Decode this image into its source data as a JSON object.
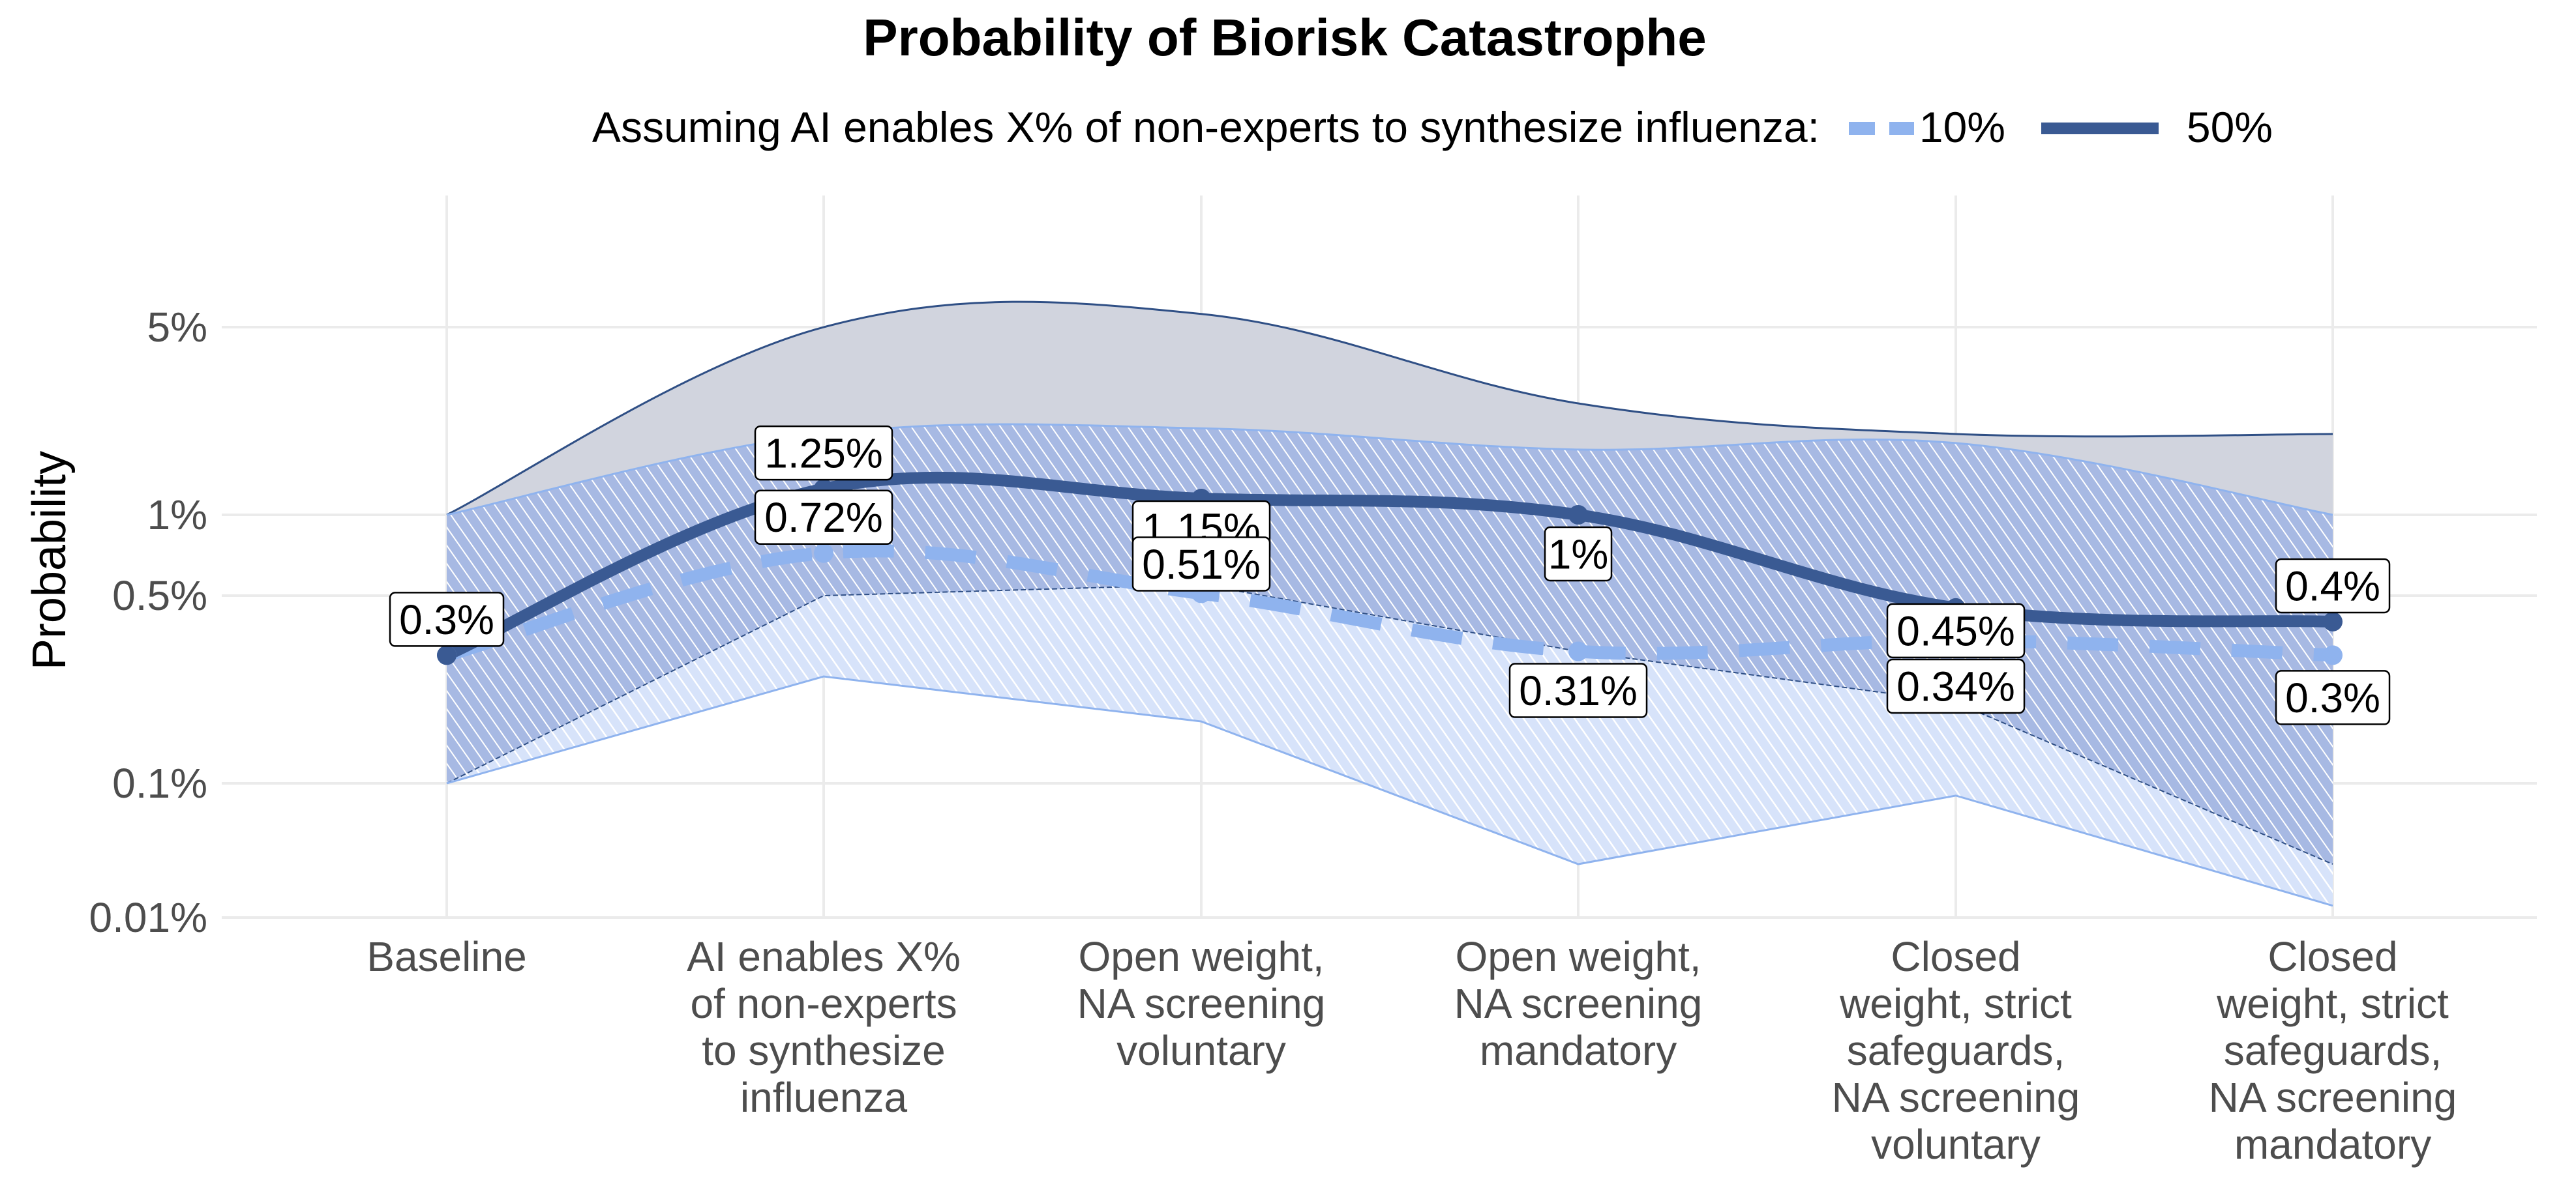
{
  "chart_data": {
    "type": "line",
    "title": "Probability of Biorisk Catastrophe",
    "ylabel": "Probability",
    "xlabel": "",
    "y_scale": "log (broken: 0.01% at bottom)",
    "y_ticks": [
      {
        "value": 0.01,
        "label": "0.01%"
      },
      {
        "value": 0.1,
        "label": "0.1%"
      },
      {
        "value": 0.5,
        "label": "0.5%"
      },
      {
        "value": 1,
        "label": "1%"
      },
      {
        "value": 5,
        "label": "5%"
      }
    ],
    "categories": [
      [
        "Baseline"
      ],
      [
        "AI enables X%",
        "of non-experts",
        "to synthesize",
        "influenza"
      ],
      [
        "Open weight,",
        "NA screening",
        "voluntary"
      ],
      [
        "Open weight,",
        "NA screening",
        "mandatory"
      ],
      [
        "Closed",
        "weight, strict",
        "safeguards,",
        "NA screening",
        "voluntary"
      ],
      [
        "Closed",
        "weight, strict",
        "safeguards,",
        "NA screening",
        "mandatory"
      ]
    ],
    "legend": {
      "title": "Assuming AI enables X% of non-experts to synthesize influenza:",
      "position": "top",
      "entries": [
        {
          "name": "10%",
          "color": "#8fb3ee",
          "dash": "dashed"
        },
        {
          "name": "50%",
          "color": "#3a5a93",
          "dash": "solid"
        }
      ]
    },
    "series": [
      {
        "name": "10%",
        "color": "#8fb3ee",
        "values": [
          0.3,
          0.72,
          0.51,
          0.31,
          0.34,
          0.3
        ],
        "labels": [
          "",
          "0.72%",
          "0.51%",
          "0.31%",
          "0.34%",
          "0.3%"
        ],
        "band_low": [
          0.1,
          0.25,
          0.17,
          0.05,
          0.09,
          0.035
        ],
        "band_high": [
          1.0,
          2.0,
          2.1,
          1.75,
          1.85,
          1.0
        ]
      },
      {
        "name": "50%",
        "color": "#3a5a93",
        "values": [
          0.3,
          1.25,
          1.15,
          1.0,
          0.45,
          0.4
        ],
        "labels": [
          "0.3%",
          "1.25%",
          "1.15%",
          "1%",
          "0.45%",
          "0.4%"
        ],
        "band_low": [
          0.1,
          0.5,
          0.55,
          0.31,
          0.2,
          0.05
        ],
        "band_high": [
          1.0,
          5.0,
          5.6,
          2.6,
          2.0,
          2.0
        ]
      }
    ],
    "grid": true
  },
  "colors": {
    "light_series": "#8fb3ee",
    "dark_series": "#3a5a93",
    "dark_band": "#d1d4de",
    "grid": "#ebebeb"
  }
}
